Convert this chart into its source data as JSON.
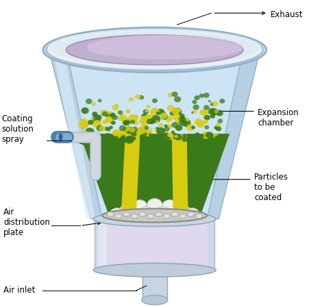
{
  "bg_color": "#ffffff",
  "labels": {
    "exhaust": "Exhaust",
    "expansion_chamber": "Expansion\nchamber",
    "coating_solution": "Coating\nsolution\nspray",
    "particles": "Particles\nto be\ncoated",
    "air_distribution": "Air\ndistribution\nplate",
    "air_inlet": "Air inlet"
  },
  "chamber_outer_color": "#c8dce8",
  "chamber_inner_bg": "#d8eef8",
  "top_ring_outer": "#dce8f0",
  "top_ring_inner_fill": "#c8b8d8",
  "top_ring_highlight": "#e8f0f8",
  "particles_green": "#3a7a18",
  "particles_yellow": "#d8cc10",
  "particles_scattered_green": "#4a8c20",
  "particles_scattered_yellow": "#cccc00",
  "plate_color": "#d0d0d0",
  "plate_dots": "#e8e8e8",
  "base_color": "#d8dfe8",
  "base_lavender": "#dcd0e8",
  "nozzle_body": "#c8d0d8",
  "nozzle_tip_color": "#5080a8",
  "wall_color": "#b8ccd8"
}
